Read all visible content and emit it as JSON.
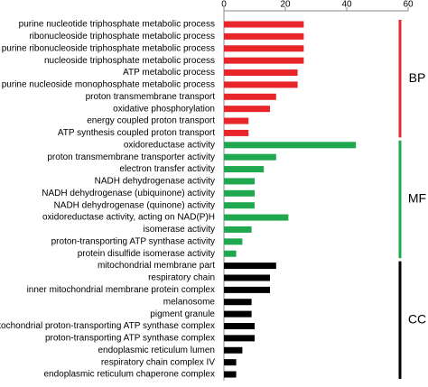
{
  "chart_data": {
    "type": "bar",
    "orientation": "horizontal",
    "categories": [
      "purine nucleotide triphosphate metabolic process",
      "ribonucleoside triphosphate metabolic process",
      "purine ribonucleoside triphosphate metabolic process",
      "nucleoside triphosphate metabolic process",
      "ATP metabolic process",
      "purine nucleoside monophosphate metabolic process",
      "proton transmembrane transport",
      "oxidative phosphorylation",
      "energy coupled proton transport",
      "ATP synthesis coupled proton transport",
      "oxidoreductase activity",
      "proton transmembrane transporter activity",
      "electron transfer activity",
      "NADH dehydrogenase activity",
      "NADH dehydrogenase (ubiquinone) activity",
      "NADH dehydrogenase (quinone) activity",
      "oxidoreductase activity, acting on NAD(P)H",
      "isomerase activity",
      "proton-transporting ATP synthase activity",
      "protein disulfide isomerase activity",
      "mitochondrial membrane part",
      "respiratory chain",
      "inner mitochondrial membrane protein complex",
      "melanosome",
      "pigment granule",
      "mitochondrial proton-transporting ATP synthase complex",
      "proton-transporting ATP synthase complex",
      "endoplasmic reticulum lumen",
      "respiratory chain complex IV",
      "endoplasmic reticulum chaperone complex"
    ],
    "series": [
      {
        "name": "BP",
        "color": "#e8262a",
        "values": [
          26,
          26,
          26,
          26,
          24,
          24,
          17,
          15,
          8,
          8,
          null,
          null,
          null,
          null,
          null,
          null,
          null,
          null,
          null,
          null,
          null,
          null,
          null,
          null,
          null,
          null,
          null,
          null,
          null,
          null
        ]
      },
      {
        "name": "MF",
        "color": "#1fa84f",
        "values": [
          null,
          null,
          null,
          null,
          null,
          null,
          null,
          null,
          null,
          null,
          43,
          17,
          13,
          10,
          10,
          10,
          21,
          9,
          6,
          4,
          null,
          null,
          null,
          null,
          null,
          null,
          null,
          null,
          null,
          null
        ]
      },
      {
        "name": "CC",
        "color": "#000000",
        "values": [
          null,
          null,
          null,
          null,
          null,
          null,
          null,
          null,
          null,
          null,
          null,
          null,
          null,
          null,
          null,
          null,
          null,
          null,
          null,
          null,
          17,
          15,
          15,
          9,
          9,
          10,
          10,
          6,
          4,
          4
        ]
      }
    ],
    "xlim": [
      0,
      60
    ],
    "xticks": [
      0,
      20,
      40,
      60
    ]
  }
}
